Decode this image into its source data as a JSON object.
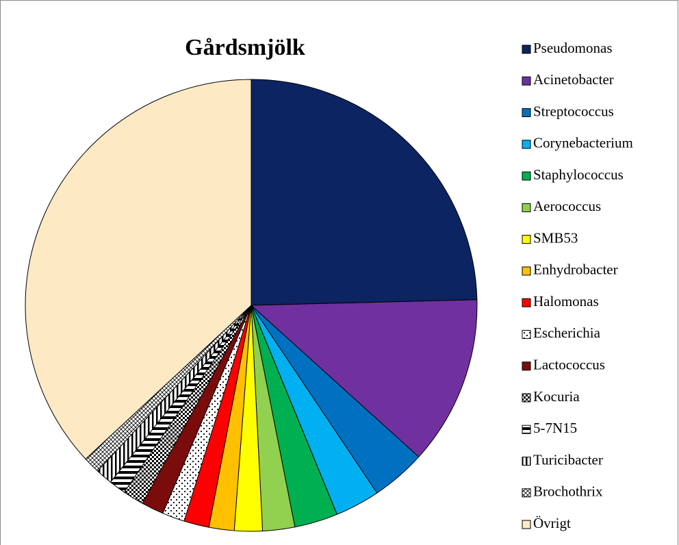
{
  "chart_data": {
    "type": "pie",
    "title": "Gårdsmjölk",
    "categories": [
      "Pseudomonas",
      "Acinetobacter",
      "Streptococcus",
      "Corynebacterium",
      "Staphylococcus",
      "Aerococcus",
      "SMB53",
      "Enhydrobacter",
      "Halomonas",
      "Escherichia",
      "Lactococcus",
      "Kocuria",
      "5-7N15",
      "Turicibacter",
      "Brochothrix",
      "Övrigt"
    ],
    "values": [
      24.6,
      12.1,
      3.9,
      3.2,
      3.1,
      2.3,
      2.0,
      1.8,
      1.8,
      1.6,
      1.6,
      1.5,
      1.2,
      1.2,
      1.2,
      36.9
    ],
    "colors": [
      "#0c2461",
      "#7030a0",
      "#0070c0",
      "#00b0f0",
      "#00b050",
      "#92d050",
      "#ffff00",
      "#ffc000",
      "#ff0000",
      "dots",
      "#7b0c0c",
      "checker",
      "hstripes",
      "vstripes",
      "lattice",
      "#fde9c4"
    ],
    "legend": "right"
  }
}
